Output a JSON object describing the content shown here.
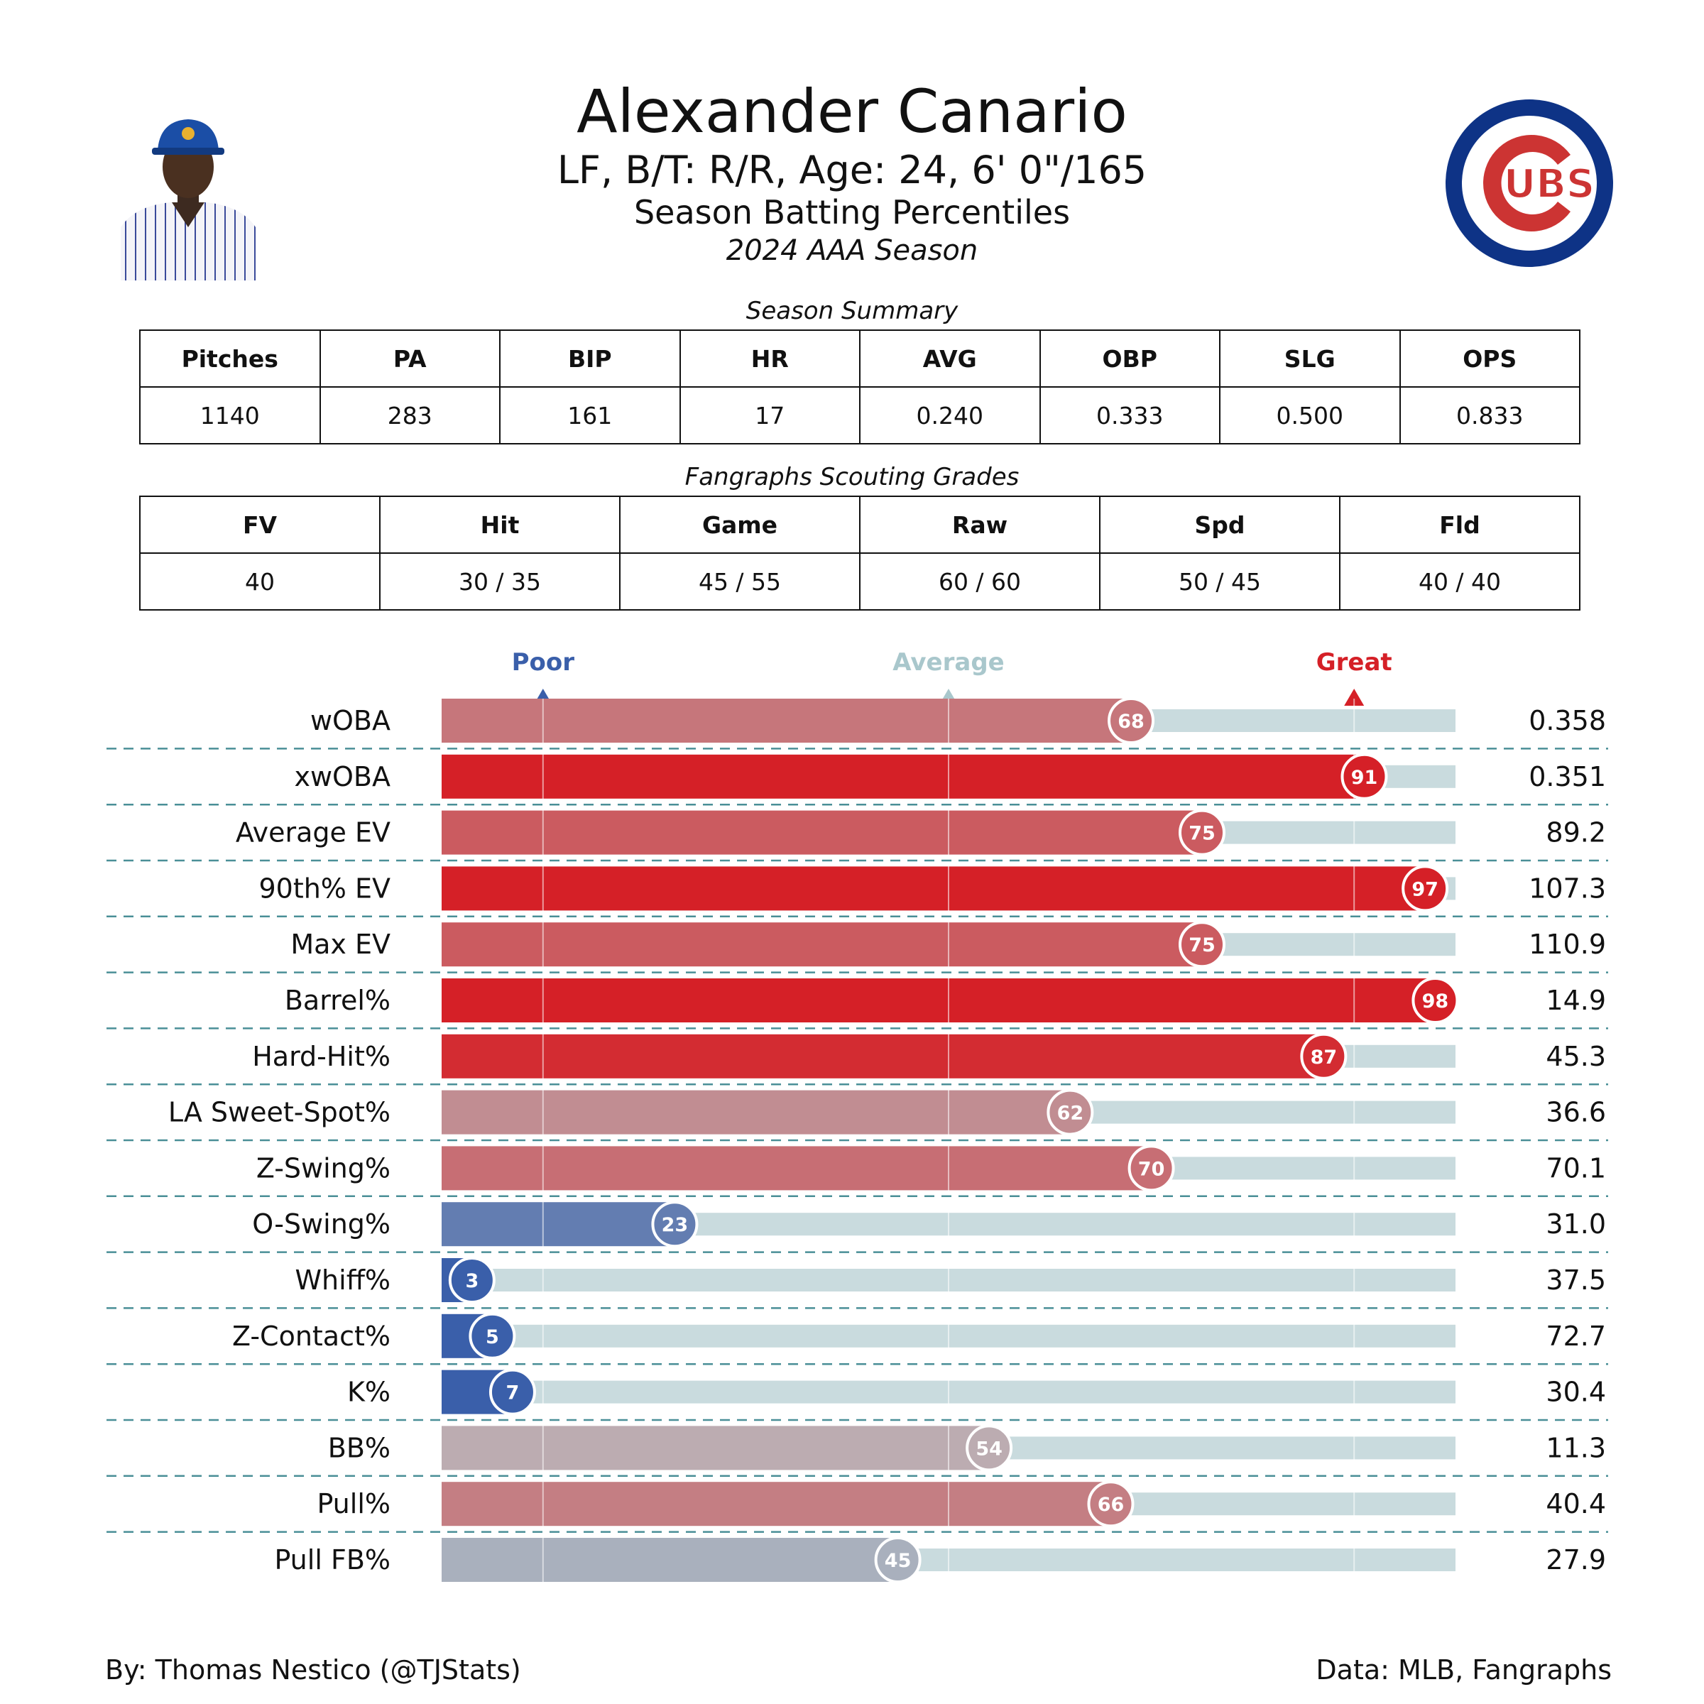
{
  "header": {
    "name": "Alexander Canario",
    "info": "LF, B/T: R/R, Age: 24, 6' 0\"/165",
    "subtitle": "Season Batting Percentiles",
    "season": "2024 AAA Season"
  },
  "season_summary": {
    "title": "Season Summary",
    "headers": [
      "Pitches",
      "PA",
      "BIP",
      "HR",
      "AVG",
      "OBP",
      "SLG",
      "OPS"
    ],
    "values": [
      "1140",
      "283",
      "161",
      "17",
      "0.240",
      "0.333",
      "0.500",
      "0.833"
    ]
  },
  "scouting_grades": {
    "title": "Fangraphs Scouting Grades",
    "headers": [
      "FV",
      "Hit",
      "Game",
      "Raw",
      "Spd",
      "Fld"
    ],
    "values": [
      "40",
      "30 / 35",
      "45 / 55",
      "60 / 60",
      "50 / 45",
      "40 / 40"
    ]
  },
  "logo": {
    "text": "UBS",
    "ring_color": "#0E3386",
    "c_color": "#CC3433"
  },
  "chart_data": {
    "type": "bar",
    "orientation": "horizontal",
    "xlim": [
      0,
      100
    ],
    "reference_marks": [
      {
        "label": "Poor",
        "value": 10,
        "color": "#3A5FAA"
      },
      {
        "label": "Average",
        "value": 50,
        "color": "#A9C7CC"
      },
      {
        "label": "Great",
        "value": 90,
        "color": "#D52027"
      }
    ],
    "categories": [
      "wOBA",
      "xwOBA",
      "Average EV",
      "90th% EV",
      "Max EV",
      "Barrel%",
      "Hard-Hit%",
      "LA Sweet-Spot%",
      "Z-Swing%",
      "O-Swing%",
      "Whiff%",
      "Z-Contact%",
      "K%",
      "BB%",
      "Pull%",
      "Pull FB%"
    ],
    "percentiles": [
      68,
      91,
      75,
      97,
      75,
      98,
      87,
      62,
      70,
      23,
      3,
      5,
      7,
      54,
      66,
      45
    ],
    "stat_values": [
      "0.358",
      "0.351",
      "89.2",
      "107.3",
      "110.9",
      "14.9",
      "45.3",
      "36.6",
      "70.1",
      "31.0",
      "37.5",
      "72.7",
      "30.4",
      "11.3",
      "40.4",
      "27.9"
    ],
    "track_color": "#C9DBDE",
    "color_low": "#3A5FAA",
    "color_mid": "#B9BCC0",
    "color_high": "#D52027"
  },
  "credits": {
    "left": "By: Thomas Nestico (@TJStats)",
    "right": "Data: MLB, Fangraphs"
  }
}
